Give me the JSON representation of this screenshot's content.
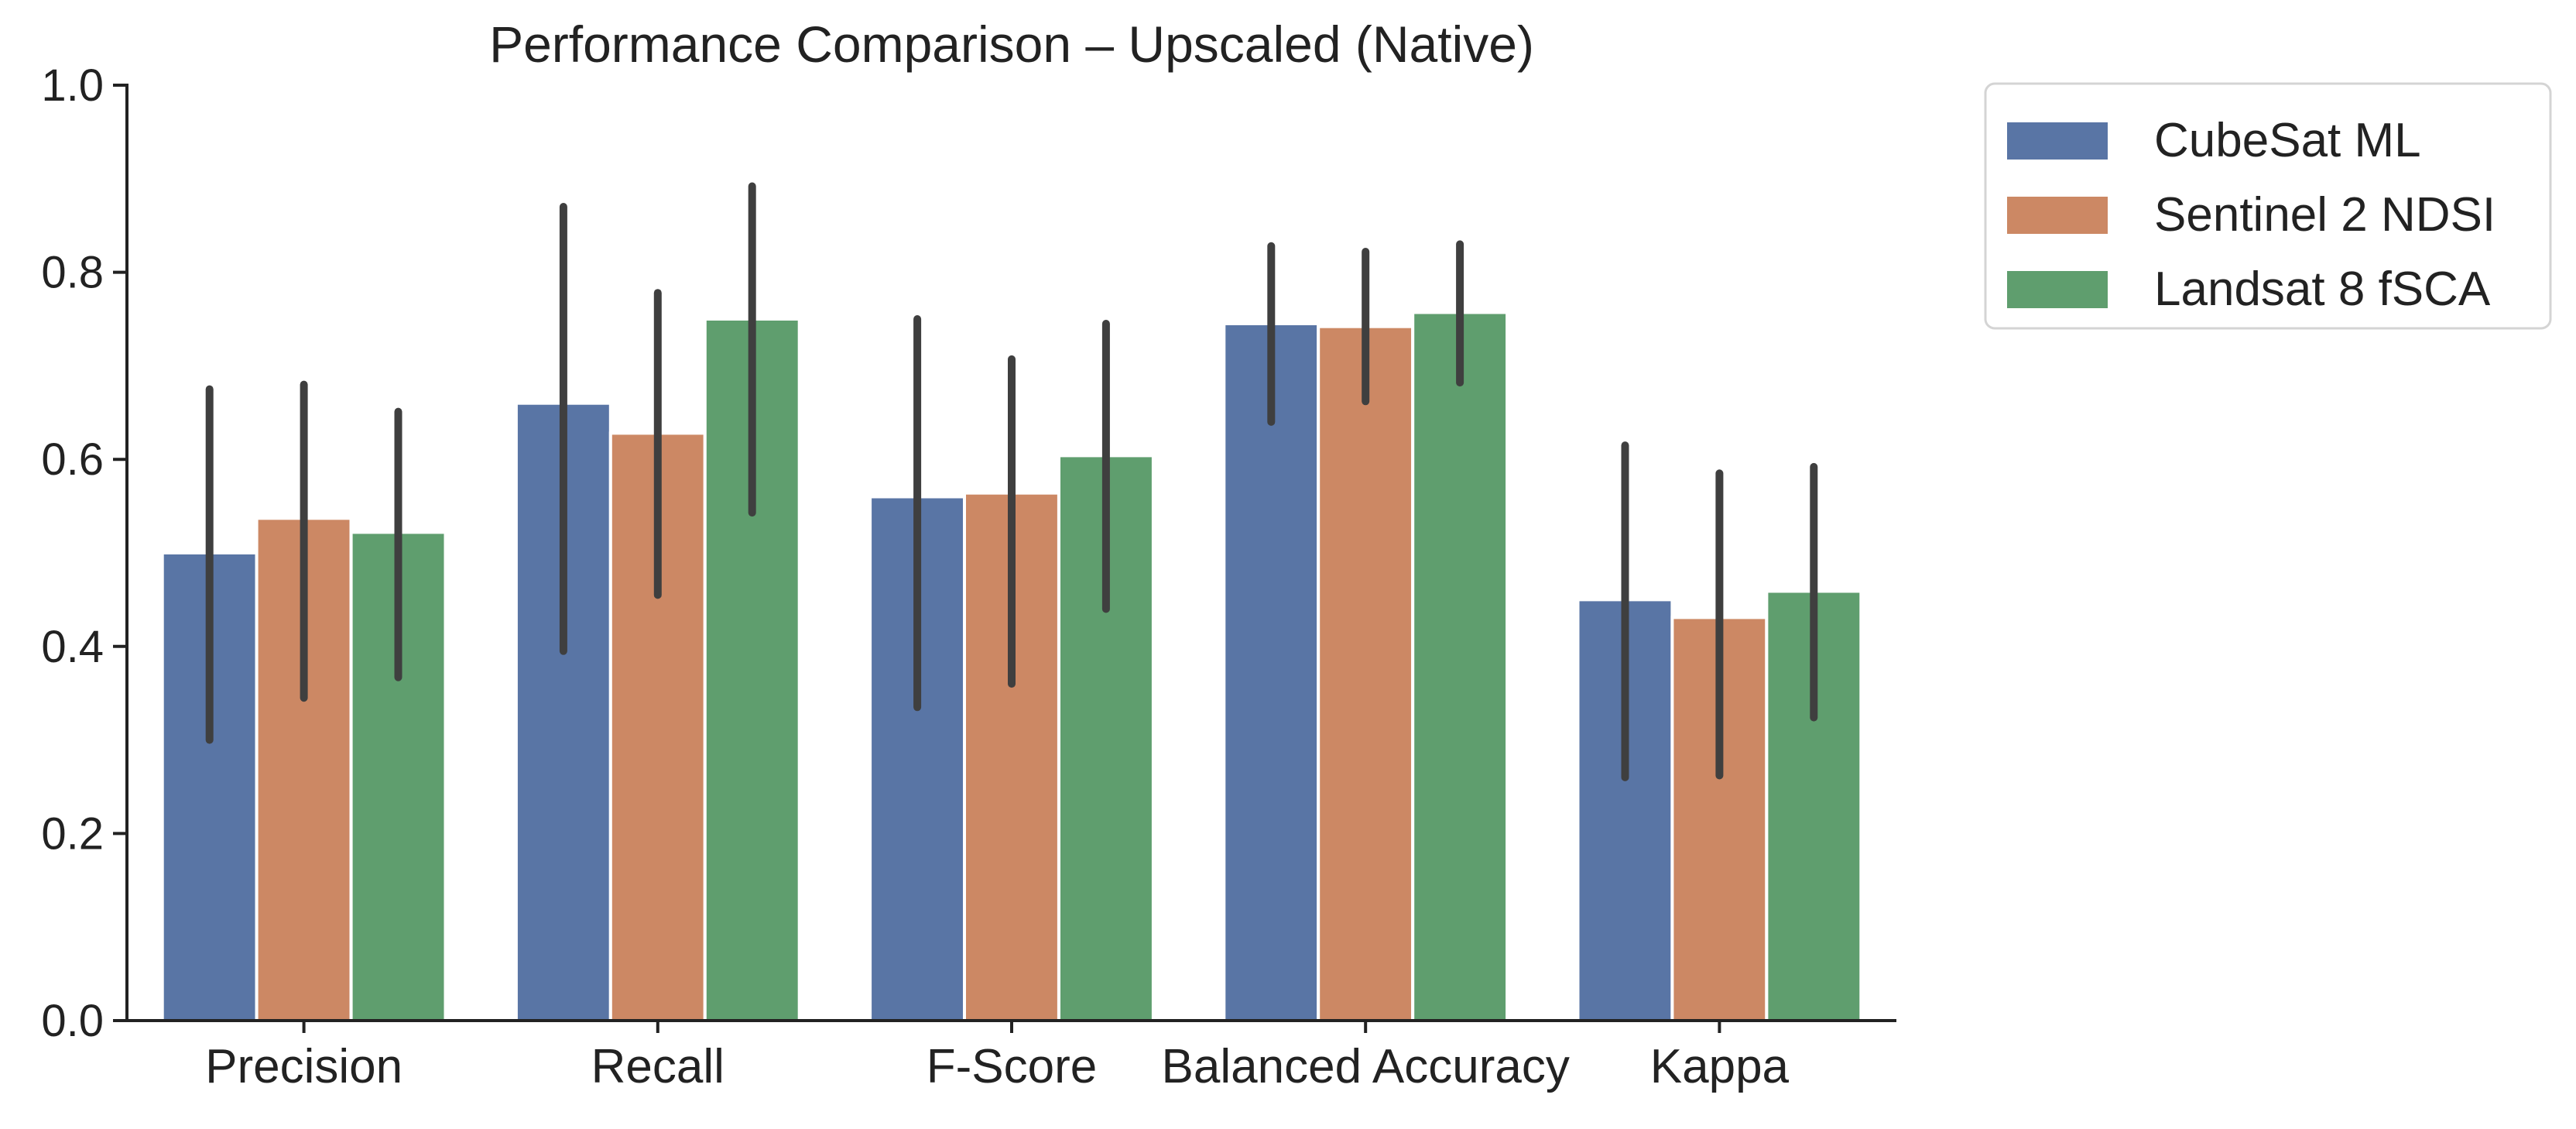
{
  "chart_data": {
    "type": "bar",
    "title": "Performance Comparison – Upscaled (Native)",
    "xlabel": "",
    "ylabel": "",
    "ylim": [
      0,
      1.0
    ],
    "yticks": [
      "0.0",
      "0.2",
      "0.4",
      "0.6",
      "0.8",
      "1.0"
    ],
    "categories": [
      "Precision",
      "Recall",
      "F-Score",
      "Balanced Accuracy",
      "Kappa"
    ],
    "series": [
      {
        "name": "CubeSat ML",
        "color": "#5975a5",
        "values": [
          0.5,
          0.66,
          0.56,
          0.745,
          0.45
        ],
        "error_low": [
          0.3,
          0.395,
          0.335,
          0.64,
          0.26
        ],
        "error_high": [
          0.675,
          0.87,
          0.75,
          0.828,
          0.615
        ]
      },
      {
        "name": "Sentinel 2 NDSI",
        "color": "#cc8864",
        "values": [
          0.537,
          0.628,
          0.564,
          0.742,
          0.431
        ],
        "error_low": [
          0.345,
          0.455,
          0.36,
          0.662,
          0.262
        ],
        "error_high": [
          0.68,
          0.778,
          0.707,
          0.822,
          0.585
        ]
      },
      {
        "name": "Landsat 8 fSCA",
        "color": "#5f9e6e",
        "values": [
          0.522,
          0.75,
          0.604,
          0.757,
          0.459
        ],
        "error_low": [
          0.367,
          0.543,
          0.44,
          0.682,
          0.324
        ],
        "error_high": [
          0.651,
          0.892,
          0.745,
          0.83,
          0.592
        ]
      }
    ],
    "error_bar_color": "#3f3f3f",
    "legend_position": "outside-top-right",
    "grid": false
  }
}
